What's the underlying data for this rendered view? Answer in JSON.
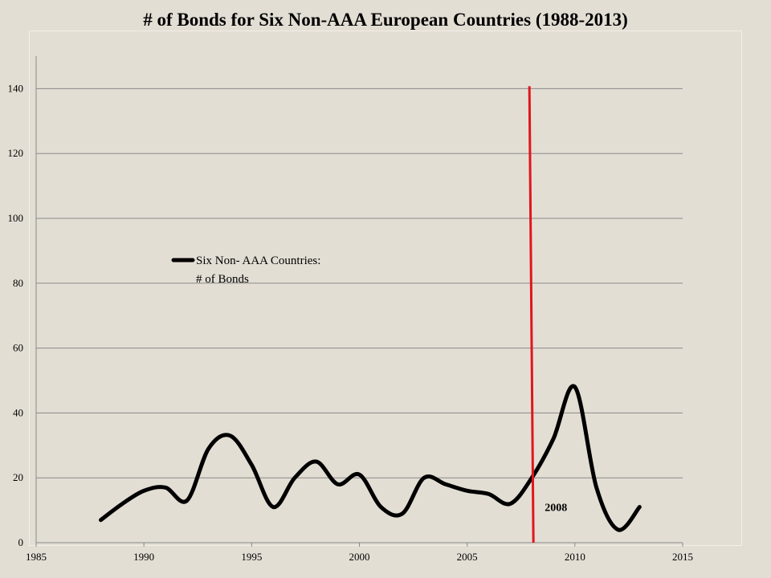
{
  "colors": {
    "background": "#e3ded4",
    "grid": "#8a8a8a",
    "series_line": "#000000",
    "marker_line": "#e0161d"
  },
  "chart_data": {
    "type": "line",
    "title": "# of Bonds for Six Non-AAA European Countries (1988-2013)",
    "xlabel": "",
    "ylabel": "",
    "xlim": [
      1985,
      2015
    ],
    "ylim": [
      0,
      150
    ],
    "x_ticks": [
      1985,
      1990,
      1995,
      2000,
      2005,
      2010,
      2015
    ],
    "y_ticks": [
      0,
      20,
      40,
      60,
      80,
      100,
      120,
      140
    ],
    "grid": true,
    "legend": {
      "position": "middle-left",
      "entries": [
        "Six Non- AAA Countries:",
        "# of Bonds"
      ]
    },
    "series": [
      {
        "name": "Six Non- AAA Countries: # of Bonds",
        "x": [
          1988,
          1989,
          1990,
          1991,
          1992,
          1993,
          1994,
          1995,
          1996,
          1997,
          1998,
          1999,
          2000,
          2001,
          2002,
          2003,
          2004,
          2005,
          2006,
          2007,
          2008,
          2009,
          2010,
          2011,
          2012,
          2013
        ],
        "values": [
          7,
          12,
          16,
          17,
          13,
          29,
          33,
          24,
          11,
          20,
          25,
          18,
          21,
          11,
          9,
          20,
          18,
          16,
          15,
          12,
          20,
          32,
          48,
          17,
          4,
          11
        ]
      }
    ],
    "reference_line": {
      "x": 2008,
      "y_top": 140,
      "color": "#e0161d"
    },
    "annotations": [
      {
        "text": "2008",
        "x": 2008.6,
        "y": 11
      }
    ]
  }
}
